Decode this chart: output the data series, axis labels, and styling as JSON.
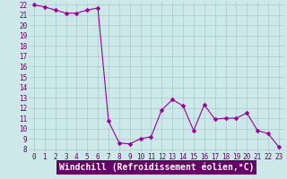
{
  "x": [
    0,
    1,
    2,
    3,
    4,
    5,
    6,
    7,
    8,
    9,
    10,
    11,
    12,
    13,
    14,
    15,
    16,
    17,
    18,
    19,
    20,
    21,
    22,
    23
  ],
  "y": [
    22.0,
    21.8,
    21.5,
    21.2,
    21.2,
    21.5,
    21.7,
    10.7,
    8.6,
    8.5,
    9.0,
    9.2,
    11.8,
    12.8,
    12.2,
    9.8,
    12.3,
    10.9,
    11.0,
    11.0,
    11.5,
    9.8,
    9.5,
    8.2
  ],
  "line_color": "#990099",
  "marker": "D",
  "marker_size": 2.5,
  "bg_color": "#cce8e8",
  "grid_color": "#aacccc",
  "xlabel": "Windchill (Refroidissement éolien,°C)",
  "xlabel_bg": "#660066",
  "xlabel_color": "#ffffff",
  "xlabel_fontsize": 7.0,
  "ylim": [
    8,
    22
  ],
  "xlim": [
    -0.5,
    23.5
  ],
  "yticks": [
    8,
    9,
    10,
    11,
    12,
    13,
    14,
    15,
    16,
    17,
    18,
    19,
    20,
    21,
    22
  ],
  "xticks": [
    0,
    1,
    2,
    3,
    4,
    5,
    6,
    7,
    8,
    9,
    10,
    11,
    12,
    13,
    14,
    15,
    16,
    17,
    18,
    19,
    20,
    21,
    22,
    23
  ],
  "tick_fontsize": 5.5,
  "tick_color": "#660066",
  "linewidth": 0.8
}
